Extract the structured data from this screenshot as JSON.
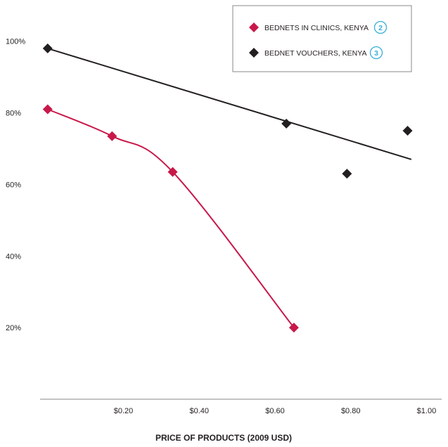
{
  "chart_data": {
    "type": "scatter",
    "title": "",
    "xlabel": "PRICE OF PRODUCTS (2009 USD)",
    "ylabel": "",
    "xlim": [
      -0.02,
      1.04
    ],
    "ylim": [
      0,
      108
    ],
    "x_ticks": [
      {
        "value": 0.2,
        "label": "$0.20"
      },
      {
        "value": 0.4,
        "label": "$0.40"
      },
      {
        "value": 0.6,
        "label": "$0.60"
      },
      {
        "value": 0.8,
        "label": "$0.80"
      },
      {
        "value": 1.0,
        "label": "$1.00"
      }
    ],
    "y_ticks": [
      {
        "value": 20,
        "label": "20%"
      },
      {
        "value": 40,
        "label": "40%"
      },
      {
        "value": 60,
        "label": "60%"
      },
      {
        "value": 80,
        "label": "80%"
      },
      {
        "value": 100,
        "label": "100%"
      }
    ],
    "grid": false,
    "legend_position": "top-right",
    "series": [
      {
        "name": "BEDNETS IN CLINICS, KENYA",
        "ref": "2",
        "color": "#c8184a",
        "marker": "diamond",
        "x": [
          0.0,
          0.17,
          0.33,
          0.65
        ],
        "y": [
          81,
          73.5,
          63.5,
          20
        ],
        "trendline": "curve"
      },
      {
        "name": "BEDNET VOUCHERS, KENYA",
        "ref": "3",
        "color": "#231f20",
        "marker": "diamond",
        "x": [
          0.0,
          0.63,
          0.79,
          0.95
        ],
        "y": [
          98,
          77,
          63,
          75
        ],
        "trendline": "linear",
        "trendline_points": [
          [
            0.0,
            98
          ],
          [
            0.96,
            67
          ]
        ]
      }
    ],
    "ref_badge_color": "#3aaed8"
  }
}
